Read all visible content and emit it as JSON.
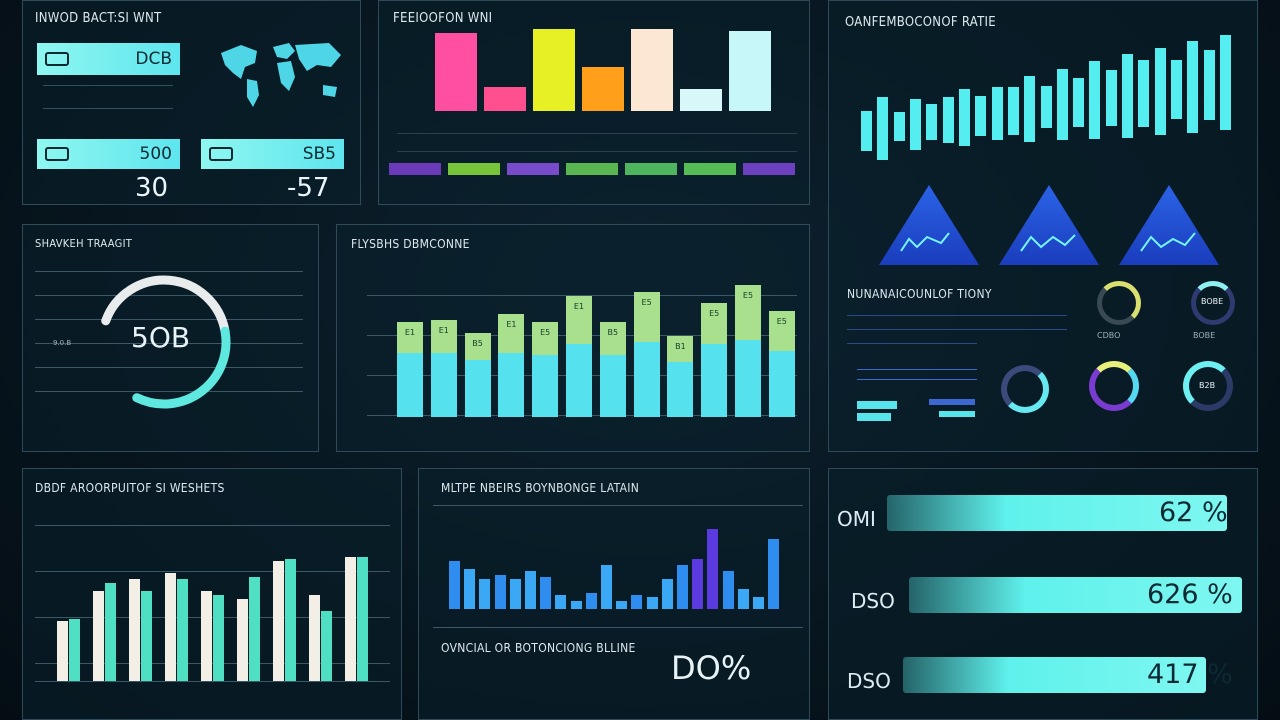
{
  "panels": {
    "top_left": {
      "title": "INWOD BACT:SI WNT",
      "kpis": [
        {
          "value": "DCB"
        },
        {
          "value": "500"
        },
        {
          "value": "SB5"
        }
      ],
      "big_values": [
        "30",
        "-57"
      ]
    },
    "top_mid": {
      "title": "FEEIOOFON WNI",
      "bars": [
        {
          "color": "#ff4fa3",
          "value": 72
        },
        {
          "color": "#ff4f8f",
          "value": 22
        },
        {
          "color": "#e6f025",
          "value": 76
        },
        {
          "color": "#ff9f1a",
          "value": 41
        },
        {
          "color": "#fbe7d2",
          "value": 76
        },
        {
          "color": "#d8f7f8",
          "value": 20
        },
        {
          "color": "#c7f7f9",
          "value": 74
        }
      ],
      "tags": [
        {
          "color": "#7b3fd1"
        },
        {
          "color": "#8be23e"
        },
        {
          "color": "#8c54e6"
        },
        {
          "color": "#69d157"
        },
        {
          "color": "#5ccf67"
        },
        {
          "color": "#63d85e"
        },
        {
          "color": "#7f47d9"
        }
      ]
    },
    "top_right": {
      "title": "OANFEMBOCONOF RATIE",
      "wave_values": [
        42,
        66,
        30,
        54,
        38,
        48,
        60,
        42,
        56,
        50,
        70,
        44,
        74,
        52,
        82,
        58,
        88,
        70,
        92,
        62,
        96,
        74,
        100
      ],
      "section_title": "NUNANAICOUNLOF TIONY",
      "donut_labels": [
        "CDBO",
        "BOBE"
      ],
      "donut_values": [
        "BOBE",
        "B2B"
      ]
    },
    "gauge": {
      "title": "SHAVKEH TRAAGIT",
      "value": "5OB",
      "percent": 72,
      "scale": [
        "9.0.B"
      ]
    },
    "mid_bars": {
      "title": "FLYSBHS DBMCONNE",
      "top_values": [
        28,
        30,
        24,
        36,
        30,
        44,
        30,
        46,
        24,
        38,
        50,
        36
      ],
      "bottom_values": [
        58,
        58,
        52,
        58,
        56,
        66,
        56,
        68,
        50,
        66,
        70,
        60
      ],
      "labels": [
        "E1",
        "E1",
        "B5",
        "E1",
        "E5",
        "E1",
        "B5",
        "E5",
        "B1",
        "E5",
        "E5",
        "E5"
      ]
    },
    "bottom_left": {
      "title": "DBDF AROORPUITOF SI WESHETS",
      "pairs": [
        [
          60,
          62
        ],
        [
          90,
          98
        ],
        [
          102,
          90
        ],
        [
          108,
          102
        ],
        [
          90,
          86
        ],
        [
          82,
          104
        ],
        [
          120,
          122
        ],
        [
          86,
          70
        ],
        [
          124,
          124
        ]
      ],
      "y_ticks": [
        "",
        "",
        "",
        ""
      ]
    },
    "bottom_mid": {
      "title": "MLTPE NBEIRS BOYNBONGE LATAIN",
      "equalizer": [
        48,
        40,
        30,
        34,
        30,
        38,
        32,
        14,
        8,
        16,
        44,
        8,
        14,
        12,
        30,
        44,
        50,
        80,
        38,
        20,
        12,
        70
      ],
      "footer_title": "OVNCIAL OR BOTONCIONG BLLINE",
      "footer_value": "DO%"
    },
    "bottom_right": {
      "rows": [
        {
          "label": "OMI",
          "value": "62 %",
          "percent": 92
        },
        {
          "label": "DSO",
          "value": "626 %",
          "percent": 90
        },
        {
          "label": "DSO",
          "value": "417 %",
          "percent": 82
        }
      ]
    }
  }
}
